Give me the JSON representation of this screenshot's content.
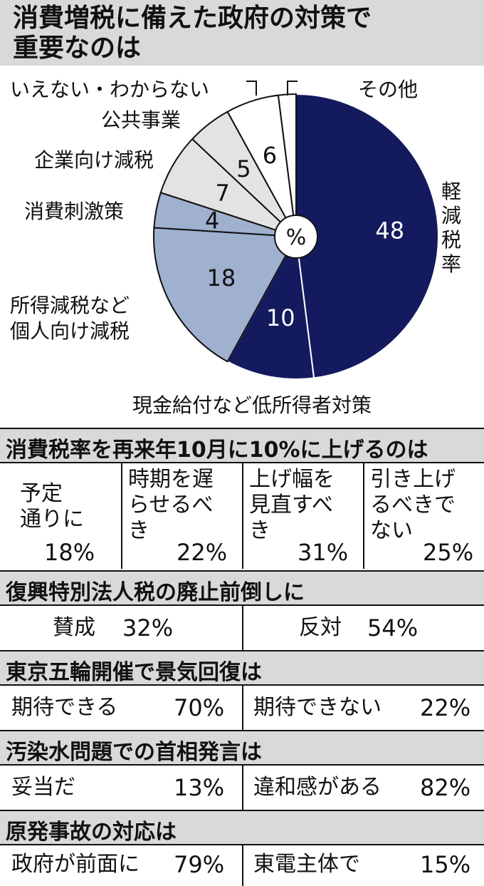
{
  "title": {
    "line1": "消費増税に備えた政府の対策で",
    "line2": "重要なのは"
  },
  "chart_data": {
    "type": "pie",
    "unit_label": "%",
    "slices": [
      {
        "label": "軽減税率",
        "value": 48,
        "color": "#141a5e"
      },
      {
        "label": "現金給付など低所得者対策",
        "value": 10,
        "color": "#141a5e"
      },
      {
        "label": "所得減税など個人向け減税",
        "value": 18,
        "color": "#9fb1cf"
      },
      {
        "label": "消費刺激策",
        "value": 4,
        "color": "#9fb1cf"
      },
      {
        "label": "企業向け減税",
        "value": 7,
        "color": "#e3e3e3"
      },
      {
        "label": "公共事業",
        "value": 5,
        "color": "#e3e3e3"
      },
      {
        "label": "いえない・わからない",
        "value": 6,
        "color": "#ffffff"
      },
      {
        "label": "その他",
        "value": 2,
        "color": "#ffffff"
      }
    ]
  },
  "sections": {
    "s1": {
      "title": "消費税率を再来年10月に10%に上げるのは",
      "options": [
        {
          "line1": "予定",
          "line2": "通りに",
          "line3": "",
          "pct": "18%"
        },
        {
          "line1": "時期を遅",
          "line2": "らせるべ",
          "line3": "き",
          "pct": "22%"
        },
        {
          "line1": "上げ幅を",
          "line2": "見直すべ",
          "line3": "き",
          "pct": "31%"
        },
        {
          "line1": "引き上げ",
          "line2": "るべきで",
          "line3": "ない",
          "pct": "25%"
        }
      ]
    },
    "s2": {
      "title": "復興特別法人税の廃止前倒しに",
      "left": {
        "label": "賛成",
        "pct": "32%"
      },
      "right": {
        "label": "反対",
        "pct": "54%"
      }
    },
    "s3": {
      "title": "東京五輪開催で景気回復は",
      "left": {
        "label": "期待できる",
        "pct": "70%"
      },
      "right": {
        "label": "期待できない",
        "pct": "22%"
      }
    },
    "s4": {
      "title": "汚染水問題での首相発言は",
      "left": {
        "label": "妥当だ",
        "pct": "13%"
      },
      "right": {
        "label": "違和感がある",
        "pct": "82%"
      }
    },
    "s5": {
      "title": "原発事故の対応は",
      "left": {
        "label": "政府が前面に",
        "pct": "79%"
      },
      "right": {
        "label": "東電主体で",
        "pct": "15%"
      }
    }
  }
}
